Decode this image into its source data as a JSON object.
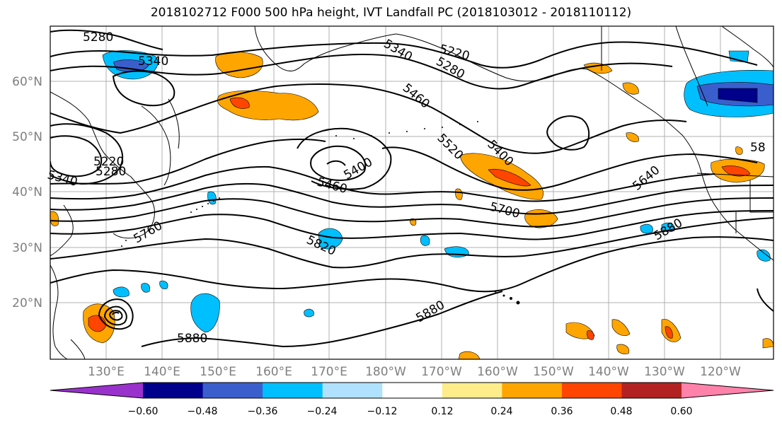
{
  "title": "2018102712 F000 500 hPa height, IVT Landfall PC (2018103012 - 2018110112)",
  "map": {
    "lat_ticks": [
      "60°N",
      "50°N",
      "40°N",
      "30°N",
      "20°N"
    ],
    "lon_ticks": [
      "130°E",
      "140°E",
      "150°E",
      "160°E",
      "170°E",
      "180°W",
      "170°W",
      "160°W",
      "150°W",
      "140°W",
      "130°W",
      "120°W"
    ],
    "contour_labels": [
      "5280",
      "5340",
      "5340",
      "5220",
      "5280",
      "5220",
      "5280",
      "5340",
      "5460",
      "5400",
      "5520",
      "5460",
      "5400",
      "5640",
      "5760",
      "5700",
      "5820",
      "5880",
      "5880",
      "5880",
      "58"
    ]
  },
  "colorbar": {
    "ticks": [
      "−0.60",
      "−0.48",
      "−0.36",
      "−0.24",
      "−0.12",
      "0.12",
      "0.24",
      "0.36",
      "0.48",
      "0.60"
    ],
    "colors": [
      "#9932cc",
      "#00008b",
      "#3a5fcd",
      "#00bfff",
      "#b0e2ff",
      "#ffffff",
      "#ffec8b",
      "#ffa500",
      "#ff4500",
      "#b22222",
      "#ff82ab"
    ]
  }
}
